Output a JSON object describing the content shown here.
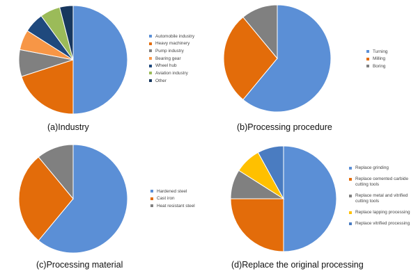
{
  "chart_data": [
    {
      "type": "pie",
      "caption": "(a)Industry",
      "labels": [
        "Automobile industry",
        "Heavy machinery",
        "Pump industry",
        "Bearing gear",
        "Wheel hub",
        "Aviation industry",
        "Other"
      ],
      "values": [
        50,
        20,
        8,
        6,
        6,
        6,
        4
      ],
      "colors": [
        "#5b8fd6",
        "#e36c0a",
        "#808080",
        "#f79646",
        "#1f497d",
        "#9bbb59",
        "#17375e"
      ],
      "legend_position": "right"
    },
    {
      "type": "pie",
      "caption": "(b)Processing procedure",
      "labels": [
        "Turning",
        "Milling",
        "Boring"
      ],
      "values": [
        61,
        28,
        11
      ],
      "colors": [
        "#5b8fd6",
        "#e36c0a",
        "#808080"
      ],
      "legend_position": "right"
    },
    {
      "type": "pie",
      "caption": "(c)Processing material",
      "labels": [
        "Hardened steel",
        "Cast iron",
        "Heat resistant steel"
      ],
      "values": [
        61,
        28,
        11
      ],
      "colors": [
        "#5b8fd6",
        "#e36c0a",
        "#808080"
      ],
      "legend_position": "right"
    },
    {
      "type": "pie",
      "caption": "(d)Replace the original processing",
      "labels": [
        "Replace grinding",
        "Replace cemented carbide cutting tools",
        "Replace metal and  vitrified cutting tools",
        "Replace lapping processing",
        "Replace vitrified processing"
      ],
      "values": [
        50,
        25,
        9,
        8,
        8
      ],
      "colors": [
        "#5b8fd6",
        "#e36c0a",
        "#808080",
        "#ffc000",
        "#4a7cc1"
      ],
      "legend_position": "right"
    }
  ]
}
